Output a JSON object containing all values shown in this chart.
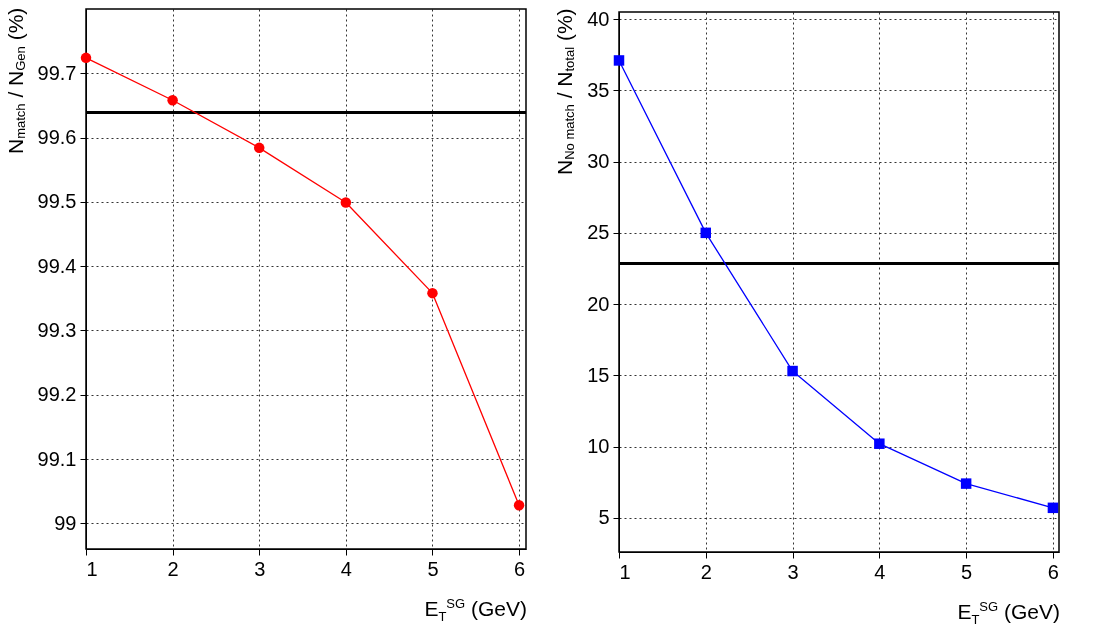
{
  "chart_data": [
    {
      "type": "line",
      "xlabel": "E$_{T}$$^{SG}$ (GeV)",
      "ylabel": "N$_{match}$ / N$_{Gen}$ (%)",
      "x": [
        1,
        2,
        3,
        4,
        5,
        6
      ],
      "series": [
        {
          "color": "#ff0000",
          "values": [
            99.724,
            99.658,
            99.584,
            99.499,
            99.358,
            99.028
          ]
        }
      ],
      "xlim": [
        1,
        6.08
      ],
      "xticks": [
        1,
        2,
        3,
        4,
        5,
        6
      ],
      "ylim": [
        98.96,
        99.8
      ],
      "yticks": [
        99,
        99.1,
        99.2,
        99.3,
        99.4,
        99.5,
        99.6,
        99.7
      ],
      "ref_lines": [
        {
          "axis": "y",
          "value": 99.639,
          "color": "#000000"
        }
      ],
      "grid": true,
      "marker": "circle"
    },
    {
      "type": "line",
      "xlabel": "E$_{T}$$^{SG}$ (GeV)",
      "ylabel": "N$_{No match}$ / N$_{total}$ (%)",
      "x": [
        1,
        2,
        3,
        4,
        5,
        6
      ],
      "series": [
        {
          "color": "#0000ff",
          "values": [
            37.1,
            25.0,
            15.3,
            10.2,
            7.4,
            5.7
          ]
        }
      ],
      "xlim": [
        1,
        6.07
      ],
      "xticks": [
        1,
        2,
        3,
        4,
        5,
        6
      ],
      "ylim": [
        2.6,
        40.5
      ],
      "yticks": [
        5,
        10,
        15,
        20,
        25,
        30,
        35,
        40
      ],
      "ref_lines": [
        {
          "axis": "y",
          "value": 22.84,
          "color": "#000000"
        }
      ],
      "grid": true,
      "marker": "square"
    }
  ]
}
